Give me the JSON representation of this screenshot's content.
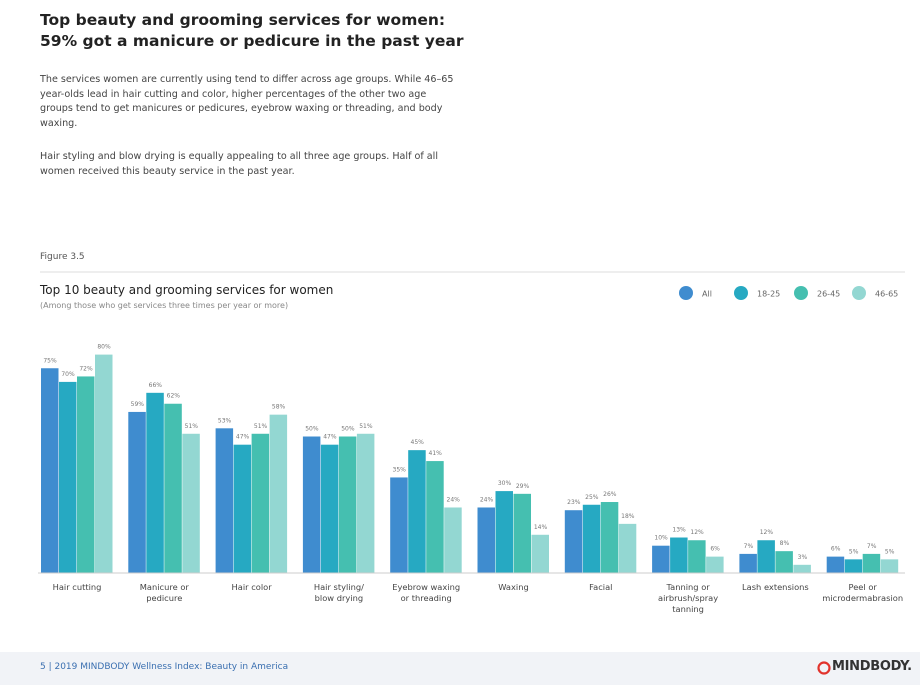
{
  "header": {
    "title": "Top beauty and grooming services for women: 59% got a manicure or pedicure in the past year",
    "paragraphs": [
      "The services women are currently using tend to differ across age groups. While 46–65 year-olds lead in hair cutting and color, higher percentages of the other two age groups tend to get manicures or pedicures, eyebrow waxing or threading, and body waxing.",
      "Hair styling and blow drying is equally appealing to all three age groups. Half of all women received this beauty service in the past year."
    ]
  },
  "figure_label": "Figure 3.5",
  "chart_data": {
    "type": "bar",
    "title": "Top 10 beauty and grooming services for women",
    "subtitle": "(Among those who get services three times per year or more)",
    "categories": [
      "Hair cutting",
      "Manicure or\npedicure",
      "Hair color",
      "Hair styling/\nblow drying",
      "Eyebrow waxing\nor threading",
      "Waxing",
      "Facial",
      "Tanning or\nairbrush/spray\ntanning",
      "Lash extensions",
      "Peel or\nmicrodermabrasion"
    ],
    "series": [
      {
        "name": "All",
        "color": "#3f8ccf",
        "values": [
          75,
          59,
          53,
          50,
          35,
          24,
          23,
          10,
          7,
          6
        ],
        "value_labels": [
          "75%",
          "59%",
          "53%",
          "50%",
          "35%",
          "24%",
          "23%",
          "10%",
          "7%",
          "6%"
        ]
      },
      {
        "name": "18-25",
        "color": "#26a9c2",
        "values": [
          70,
          66,
          47,
          47,
          45,
          30,
          25,
          13,
          12,
          5
        ],
        "value_labels": [
          "70%",
          "66%",
          "47%",
          "47%",
          "45%",
          "30%",
          "25%",
          "13%",
          "12%",
          "5%"
        ]
      },
      {
        "name": "26-45",
        "color": "#45bfb0",
        "values": [
          72,
          62,
          51,
          50,
          41,
          29,
          26,
          12,
          8,
          7
        ],
        "value_labels": [
          "72%",
          "62%",
          "51%",
          "50%",
          "41%",
          "29%",
          "26%",
          "12%",
          "8%",
          "7%"
        ]
      },
      {
        "name": "46-65",
        "color": "#93d7d2",
        "values": [
          80,
          51,
          58,
          51,
          24,
          14,
          18,
          6,
          3,
          5
        ],
        "value_labels": [
          "80%",
          "51%",
          "58%",
          "51%",
          "24%",
          "14%",
          "18%",
          "6%",
          "3%",
          "5%"
        ]
      }
    ],
    "legend": "top-right"
  },
  "footer": {
    "text": "5 | 2019 MINDBODY Wellness Index: Beauty in America",
    "logo": "MINDBODY."
  }
}
